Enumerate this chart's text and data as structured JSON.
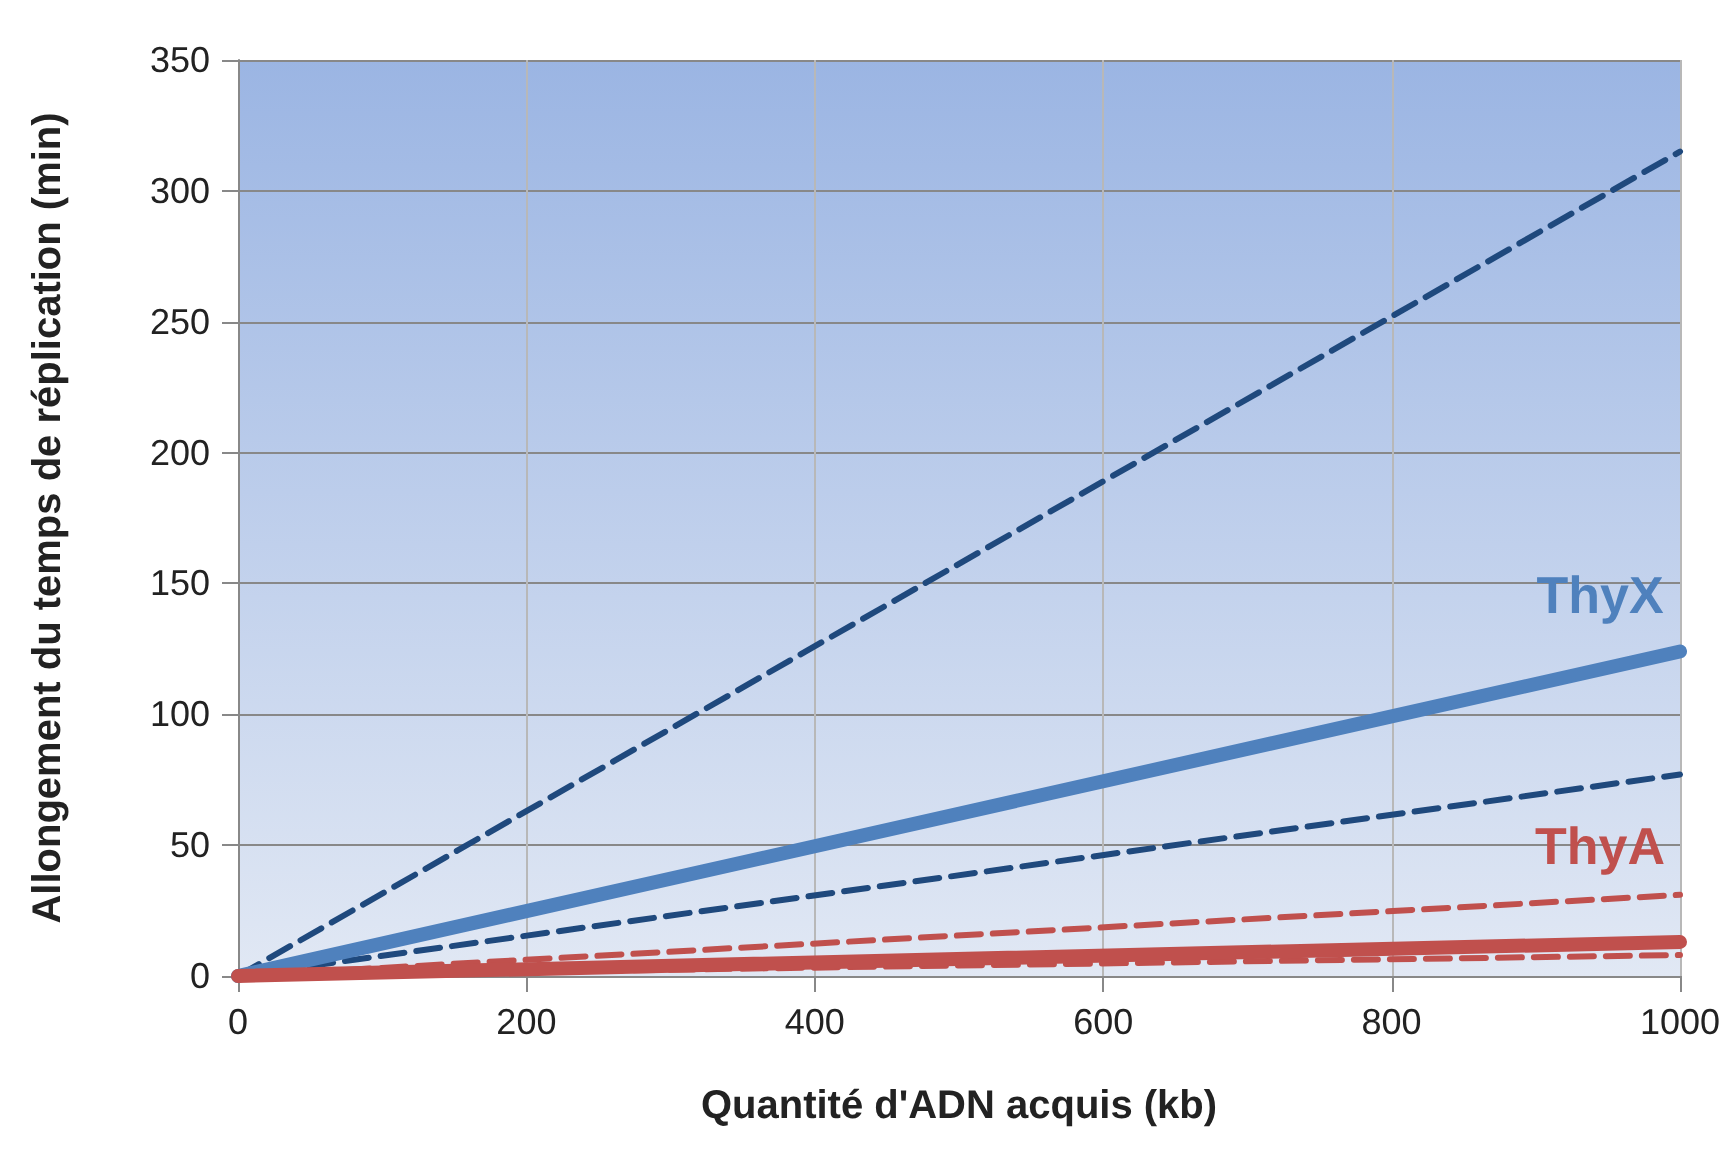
{
  "chart_data": {
    "type": "line",
    "xlabel": "Quantité d'ADN acquis (kb)",
    "ylabel": "Allongement du temps de réplication (min)",
    "x": [
      0,
      1000
    ],
    "series": [
      {
        "color": "#1f497d",
        "values": [
          0,
          315
        ],
        "line_style": "dashed"
      },
      {
        "name": "ThyX",
        "color": "#4f81bd",
        "values": [
          0,
          124
        ],
        "line_style": "solid"
      },
      {
        "color": "#1f497d",
        "values": [
          0,
          77
        ],
        "line_style": "dashed"
      },
      {
        "color": "#c0504d",
        "values": [
          0,
          31
        ],
        "line_style": "dashed"
      },
      {
        "name": "ThyA",
        "color": "#c0504d",
        "values": [
          0,
          13
        ],
        "line_style": "solid"
      },
      {
        "color": "#c0504d",
        "values": [
          0,
          8
        ],
        "line_style": "dashed"
      }
    ],
    "xlim": [
      0,
      1000
    ],
    "xticks": [
      0,
      200,
      400,
      600,
      800,
      1000
    ],
    "ylim": [
      0,
      350
    ],
    "yticks": [
      0,
      50,
      100,
      150,
      200,
      250,
      300,
      350
    ],
    "grid": true,
    "legend": false,
    "marker": "none"
  }
}
